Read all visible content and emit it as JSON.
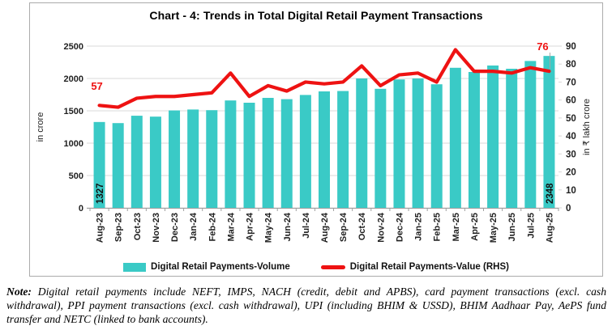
{
  "chart_data": {
    "type": "bar",
    "title": "Chart - 4: Trends in Total Digital Retail Payment Transactions",
    "categories": [
      "Aug-23",
      "Sep-23",
      "Oct-23",
      "Nov-23",
      "Dec-23",
      "Jan-24",
      "Feb-24",
      "Mar-24",
      "Apr-24",
      "May-24",
      "Jun-24",
      "Jul-24",
      "Aug-24",
      "Sep-24",
      "Oct-24",
      "Nov-24",
      "Dec-24",
      "Jan-25",
      "Feb-25",
      "Mar-25",
      "Apr-25",
      "May-25",
      "Jun-25",
      "Jul-25",
      "Aug-25"
    ],
    "series": [
      {
        "name": "Digital Retail Payments-Volume",
        "type": "bar",
        "axis": "left",
        "values": [
          1327,
          1310,
          1424,
          1410,
          1506,
          1520,
          1510,
          1660,
          1625,
          1700,
          1680,
          1745,
          1800,
          1806,
          2000,
          1840,
          1985,
          2000,
          1910,
          2165,
          2100,
          2200,
          2150,
          2270,
          2348
        ]
      },
      {
        "name": "Digital Retail Payments-Value (RHS)",
        "type": "line",
        "axis": "right",
        "values": [
          57,
          56,
          61,
          62,
          62,
          63,
          64,
          75,
          62,
          68,
          65,
          70,
          69,
          70,
          79,
          68,
          74,
          75,
          70,
          88,
          76,
          76,
          75,
          78,
          76
        ]
      }
    ],
    "left_axis": {
      "label": "in crore",
      "min": 0,
      "max": 2500,
      "ticks": [
        0,
        500,
        1000,
        1500,
        2000,
        2500
      ]
    },
    "right_axis": {
      "label": "in ₹ lakh crore",
      "min": 0,
      "max": 90,
      "ticks": [
        0,
        10,
        20,
        30,
        40,
        50,
        60,
        70,
        80,
        90
      ]
    },
    "grid": "horizontal-major",
    "legend_position": "bottom",
    "annotations": {
      "first_bar_value_label": "1327",
      "last_bar_value_label": "2348",
      "line_first_value_label": "57",
      "line_last_value_label": "76"
    },
    "colors": {
      "bar": "#3ACAC6",
      "line": "#EE1212",
      "value_label_red": "#EE1212",
      "bar_value_label": "#111111",
      "grid": "#D9D9D9",
      "axis": "#A6A6A6",
      "tick_text": "#1f1f1f"
    }
  },
  "note": {
    "prefix": "Note:",
    "text": "Digital retail payments include NEFT, IMPS, NACH (credit, debit and APBS), card payment transactions (excl. cash withdrawal), PPI payment transactions (excl. cash withdrawal), UPI (including BHIM & USSD), BHIM Aadhaar Pay, AePS fund transfer and NETC (linked to bank accounts)."
  }
}
